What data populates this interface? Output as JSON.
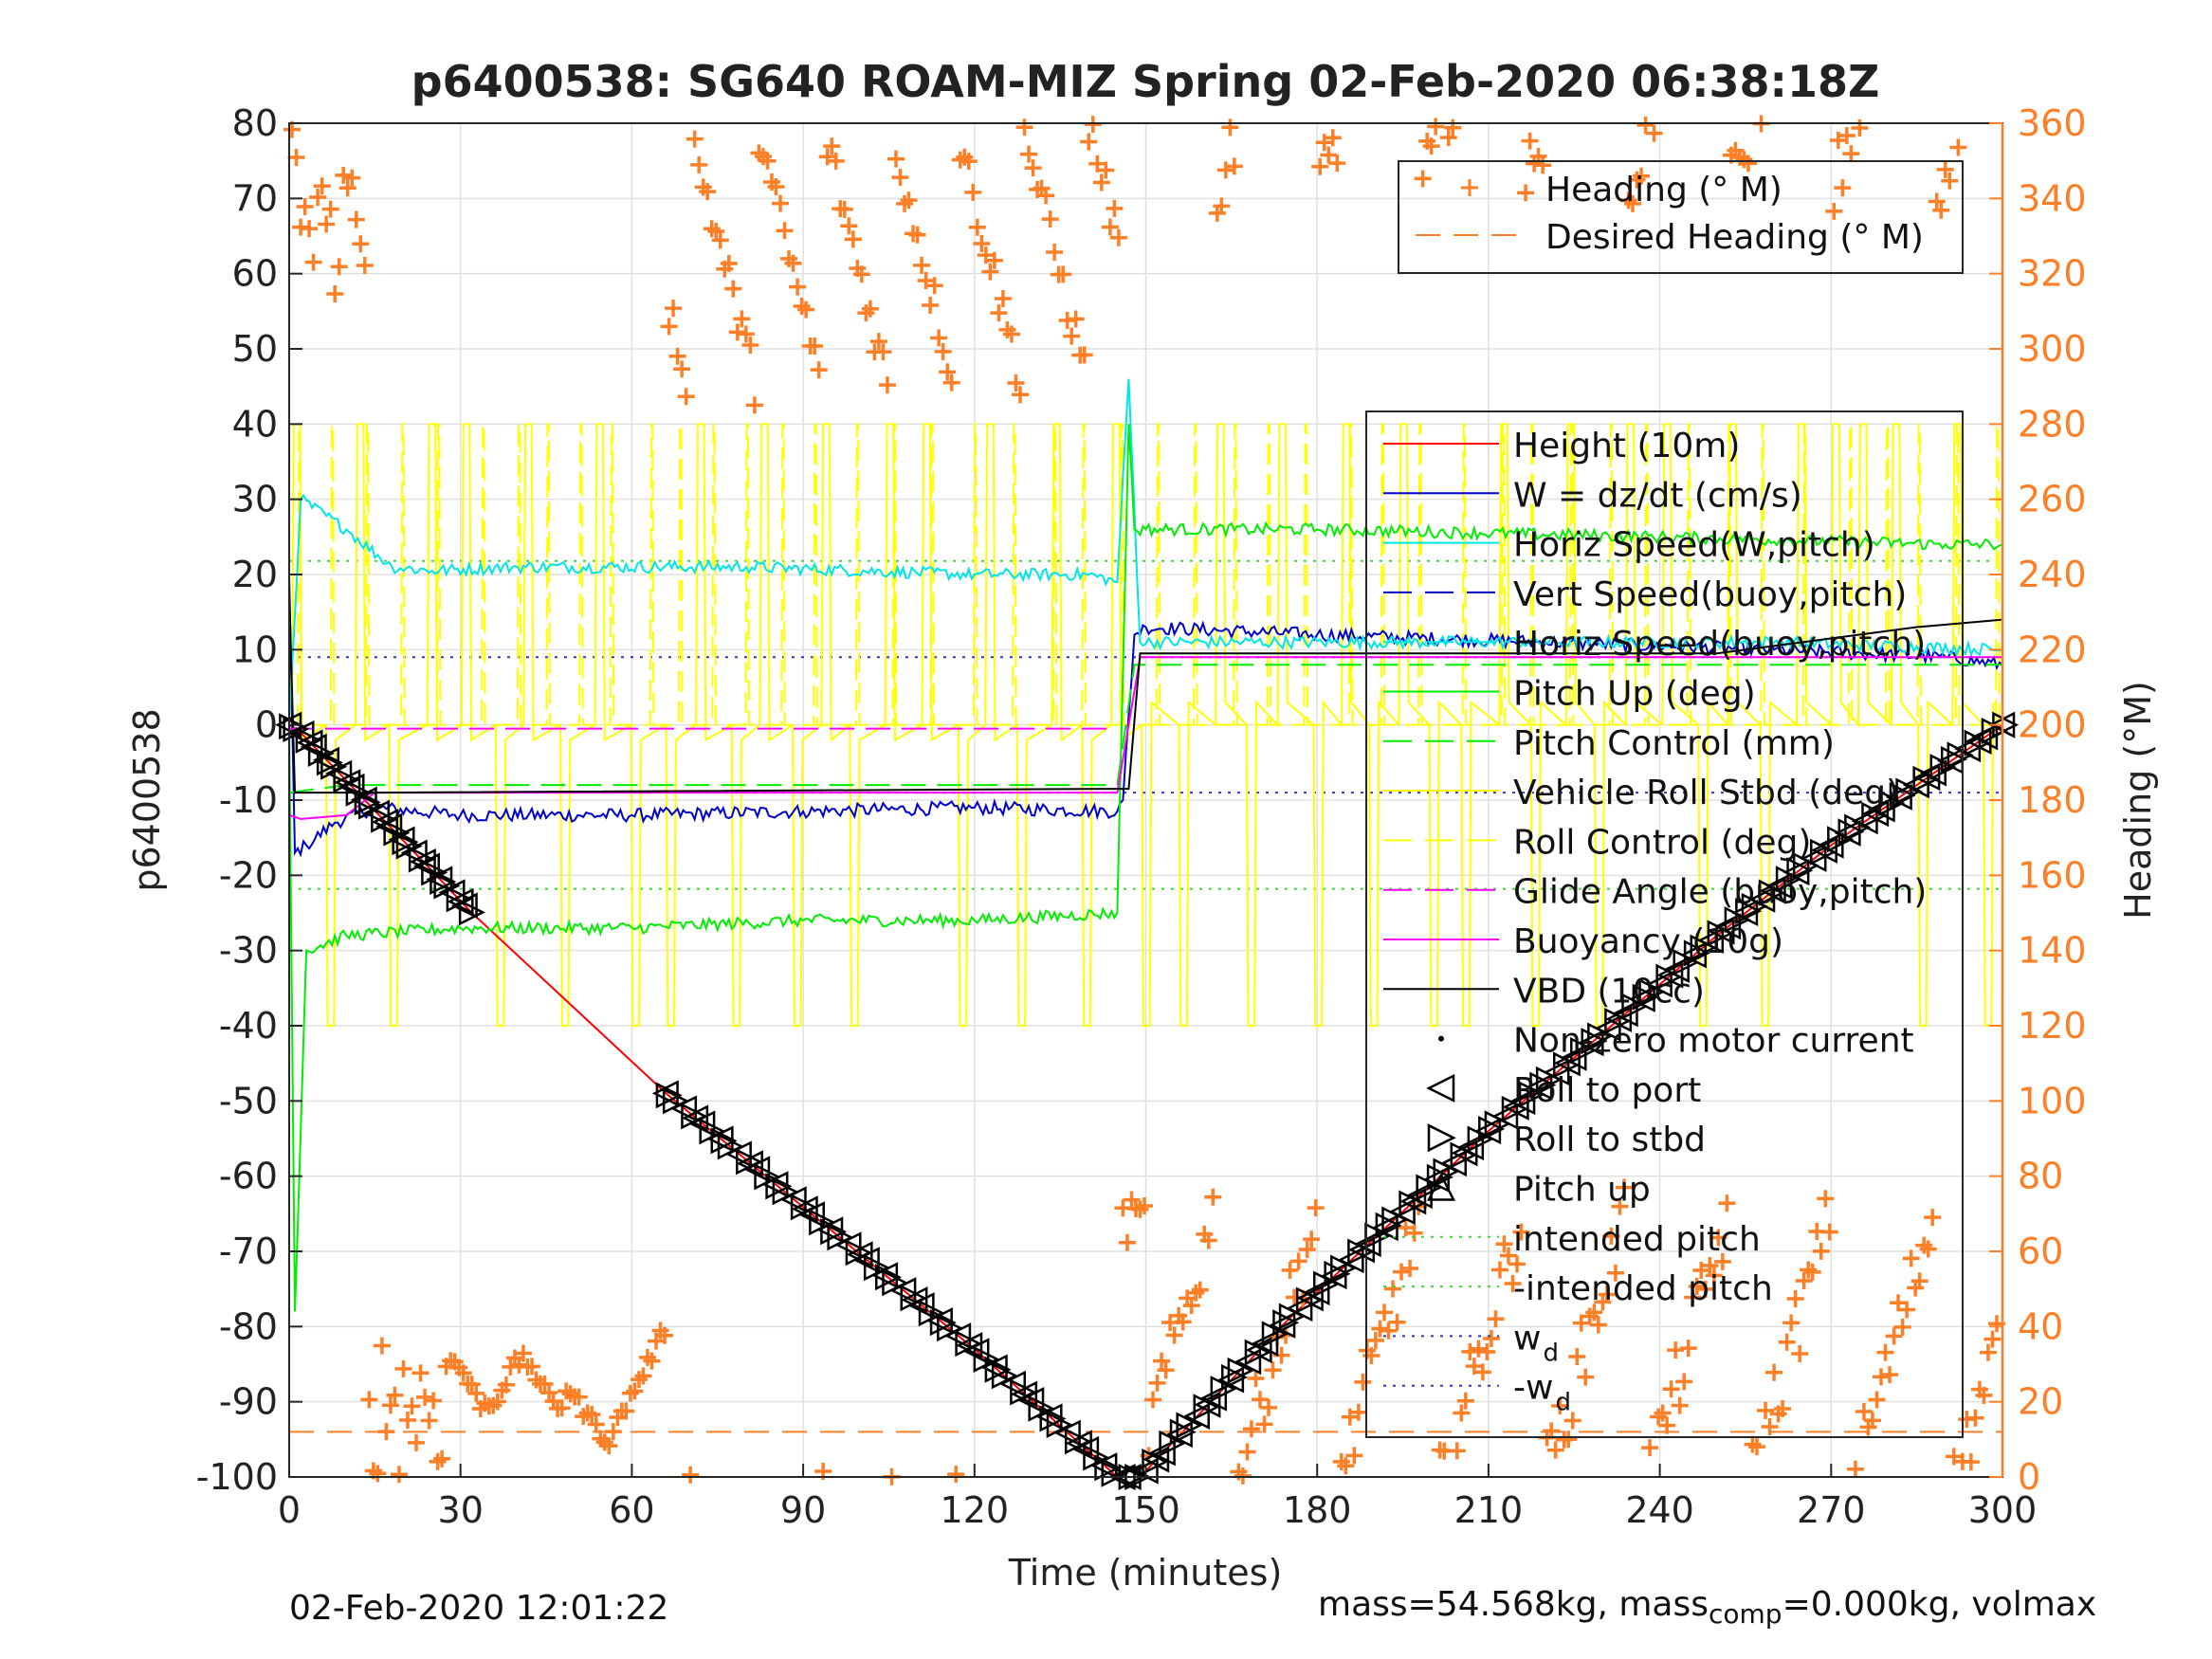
{
  "chart_data": {
    "type": "line",
    "title": "p6400538: SG640 ROAM-MIZ Spring 02-Feb-2020 06:38:18Z",
    "xlabel": "Time (minutes)",
    "ylabel": "p6400538",
    "y2label": "Heading (°M)",
    "xlim": [
      0,
      300
    ],
    "ylim": [
      -100,
      80
    ],
    "y2lim": [
      0,
      360
    ],
    "xticks": [
      0,
      30,
      60,
      90,
      120,
      150,
      180,
      210,
      240,
      270,
      300
    ],
    "yticks": [
      80,
      70,
      60,
      50,
      40,
      30,
      20,
      10,
      0,
      -10,
      -20,
      -30,
      -40,
      -50,
      -60,
      -70,
      -80,
      -90,
      -100
    ],
    "y2ticks": [
      360,
      340,
      320,
      300,
      280,
      260,
      240,
      220,
      200,
      180,
      160,
      140,
      120,
      100,
      80,
      60,
      40,
      20,
      0
    ],
    "grid": true,
    "colors": {
      "height": "#ff0000",
      "w": "#0000cc",
      "horiz_speed": "#00e5e5",
      "pitch_up": "#00ee00",
      "roll": "#ffff00",
      "glide": "#ff00ff",
      "vbd": "#000000",
      "heading": "#ff7f27",
      "right_axis": "#ff7f27"
    },
    "legend_heading": {
      "placement": "top-right",
      "entries": [
        "Heading (° M)",
        "Desired Heading (° M)"
      ]
    },
    "legend_main": {
      "placement": "right",
      "entries": [
        "Height (10m)",
        "W = dz/dt (cm/s)",
        "Horiz Speed(W,pitch)",
        "Vert Speed(buoy,pitch)",
        "Horiz Speed(buoy,pitch)",
        "Pitch Up (deg)",
        "Pitch Control (mm)",
        "Vehicle Roll Stbd (deg)",
        "Roll Control (deg)",
        "Glide Angle (buoy,pitch)",
        "Buoyancy (10g)",
        "VBD (10cc)",
        "Non-zero motor current",
        "Roll to port",
        "Roll to stbd",
        "Pitch up",
        "intended pitch",
        "-intended pitch",
        "w",
        "-w"
      ],
      "subscripts": {
        "18": "d",
        "19": "d"
      }
    },
    "series": [
      {
        "name": "Height (10m)",
        "x": [
          0,
          2,
          32,
          66,
          120,
          145,
          149,
          175,
          210,
          250,
          270,
          300
        ],
        "y": [
          0,
          -1,
          -25,
          -49,
          -83,
          -100,
          -100,
          -79,
          -54,
          -28,
          -16,
          0
        ]
      },
      {
        "name": "W = dz/dt (cm/s)",
        "x": [
          0,
          1,
          3,
          8,
          15,
          30,
          60,
          90,
          120,
          145,
          146,
          148,
          150,
          180,
          220,
          260,
          290,
          300
        ],
        "y": [
          20,
          -17,
          -16,
          -13,
          -11,
          -12,
          -12,
          -11.5,
          -11,
          -11.5,
          -10,
          12,
          13,
          12,
          11,
          10,
          9,
          8
        ]
      },
      {
        "name": "Horiz Speed(W,pitch)",
        "x": [
          0,
          2,
          10,
          18,
          25,
          40,
          80,
          120,
          140,
          145,
          147,
          149,
          200,
          260,
          300
        ],
        "y": [
          0,
          30,
          26,
          21,
          20.5,
          21,
          21,
          20,
          20,
          19,
          46,
          11,
          11,
          11,
          10
        ]
      },
      {
        "name": "Vert Speed(buoy,pitch)",
        "x": [
          0,
          300
        ],
        "y": [
          0,
          0
        ]
      },
      {
        "name": "Horiz Speed(buoy,pitch)",
        "x": [
          0,
          300
        ],
        "y": [
          0,
          0
        ]
      },
      {
        "name": "Pitch Up (deg)",
        "x": [
          0,
          1,
          3,
          10,
          30,
          60,
          90,
          120,
          145,
          147,
          148,
          150,
          180,
          240,
          290,
          300
        ],
        "y": [
          0,
          -78,
          -30,
          -28,
          -27,
          -27,
          -26,
          -26,
          -25,
          40,
          26,
          26,
          26,
          25,
          24,
          24
        ]
      },
      {
        "name": "Pitch Control (mm)",
        "x": [
          0,
          10,
          145,
          148,
          300
        ],
        "y": [
          -9,
          -8,
          -8,
          8,
          8
        ]
      },
      {
        "name": "Buoyancy (10g)",
        "x": [
          0,
          2,
          10,
          15,
          145,
          149,
          300
        ],
        "y": [
          -12,
          -12.5,
          -12,
          -9,
          -9,
          9,
          9
        ]
      },
      {
        "name": "VBD (10cc)",
        "x": [
          0,
          1,
          15,
          145,
          147,
          149,
          250,
          285,
          300
        ],
        "y": [
          18,
          -9,
          -9,
          -8.5,
          -8.5,
          9.5,
          9.5,
          13,
          14
        ]
      },
      {
        "name": "Glide Angle (buoy,pitch)",
        "x": [
          0,
          145
        ],
        "y": [
          -0.5,
          -0.5
        ]
      },
      {
        "name": "Desired Heading (° M)",
        "x": [
          0,
          300
        ],
        "y2": [
          12,
          12
        ]
      }
    ],
    "reference_lines": [
      {
        "name": "intended pitch",
        "y": 21.8
      },
      {
        "name": "-intended pitch",
        "y": -21.8
      },
      {
        "name": "w",
        "y": 9
      },
      {
        "name": "-w",
        "y": -9
      }
    ],
    "footer_left": "02-Feb-2020 12:01:22",
    "footer_right_a": "mass=54.568kg, mass",
    "footer_right_sub": "comp",
    "footer_right_b": "=0.000kg, volmax"
  }
}
